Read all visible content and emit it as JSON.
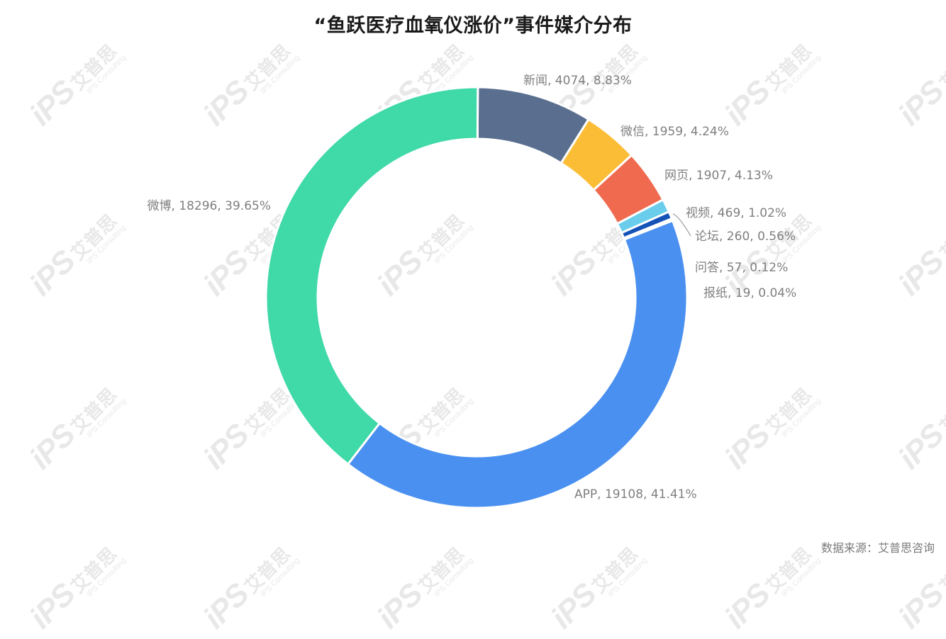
{
  "watermark": {
    "logo": "iPS",
    "name_cn": "艾普思",
    "name_en": "IPS Consulting"
  },
  "source_text": "数据来源：艾普思咨询",
  "chart_data": {
    "type": "pie",
    "variant": "donut",
    "title": "“鱼跃医疗血氧仪涨价”事件媒介分布",
    "label_format": "name, value, percent",
    "legend": "none",
    "slices": [
      {
        "name": "APP",
        "value": 19108,
        "percent": "41.41%",
        "color": "#4a90f0"
      },
      {
        "name": "微博",
        "value": 18296,
        "percent": "39.65%",
        "color": "#40d9a8"
      },
      {
        "name": "新闻",
        "value": 4074,
        "percent": "8.83%",
        "color": "#5a6f8f"
      },
      {
        "name": "微信",
        "value": 1959,
        "percent": "4.24%",
        "color": "#fbbd36"
      },
      {
        "name": "网页",
        "value": 1907,
        "percent": "4.13%",
        "color": "#f06a50"
      },
      {
        "name": "视频",
        "value": 469,
        "percent": "1.02%",
        "color": "#6bcdec"
      },
      {
        "name": "论坛",
        "value": 260,
        "percent": "0.56%",
        "color": "#1552b8"
      },
      {
        "name": "问答",
        "value": 57,
        "percent": "0.12%",
        "color": "#2a9d5c"
      },
      {
        "name": "报纸",
        "value": 19,
        "percent": "0.04%",
        "color": "#7a5a3a"
      }
    ]
  }
}
